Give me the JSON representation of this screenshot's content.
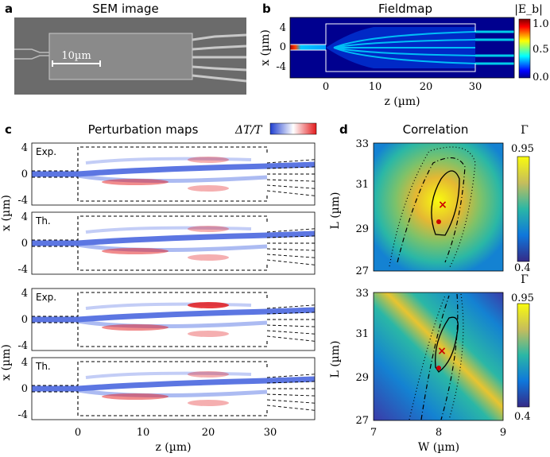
{
  "panel_a": {
    "label": "a",
    "title": "SEM image",
    "scalebar_label": "10µm"
  },
  "panel_b": {
    "label": "b",
    "title": "Fieldmap",
    "ylabel": "x (µm)",
    "xlabel": "z (µm)",
    "yticks": [
      "4",
      "0",
      "-4"
    ],
    "xticks": [
      "0",
      "10",
      "20",
      "30"
    ],
    "colorbar_label": "|E_b|",
    "colorbar_ticks": [
      "1.0",
      "0.5",
      "0.0"
    ]
  },
  "panel_c": {
    "label": "c",
    "title": "Perturbation maps",
    "colorbar_label": "ΔT/T",
    "ylabel": "x (µm)",
    "xlabel": "z (µm)",
    "rows": [
      {
        "tag": "Exp."
      },
      {
        "tag": "Th."
      },
      {
        "tag": "Exp."
      },
      {
        "tag": "Th."
      }
    ],
    "yticks": [
      "4",
      "0",
      "-4"
    ],
    "xticks": [
      "0",
      "10",
      "20",
      "30"
    ]
  },
  "panel_d": {
    "label": "d",
    "title": "Correlation",
    "colorbar_label": "Γ",
    "ylabel": "L (µm)",
    "xlabel": "W (µm)",
    "yticks": [
      "33",
      "31",
      "29",
      "27"
    ],
    "xticks": [
      "7",
      "8",
      "9"
    ],
    "colorbar_ticks": [
      "0.95",
      "0.4"
    ]
  },
  "colors": {
    "jet_low": "#00008f",
    "jet_high": "#800000",
    "seismic_neg": "#1f3fd0",
    "seismic_pos": "#e31a1c",
    "marker": "#cc0000"
  }
}
